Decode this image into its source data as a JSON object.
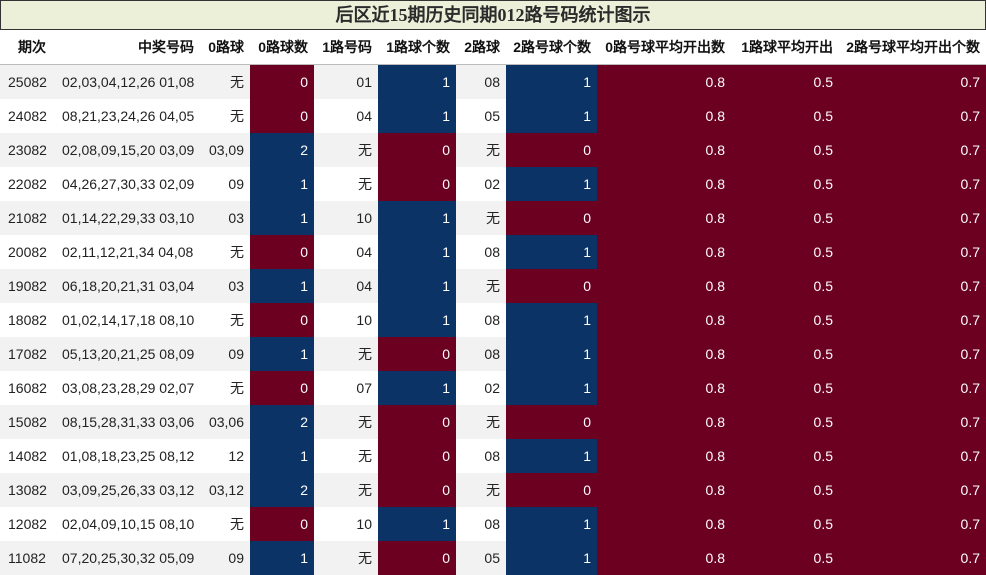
{
  "title": "后区近15期历史同期012路号码统计图示",
  "headers": [
    "期次",
    "中奖号码",
    "0路球",
    "0路球数",
    "1路号码",
    "1路球个数",
    "2路球",
    "2路号球个数",
    "0路号球平均开出数",
    "1路球平均开出",
    "2路号球平均开出个数"
  ],
  "colors": {
    "maroon": "#6b0021",
    "navy": "#0c3365",
    "title_bg": "#ecf0d9",
    "stripe": "#f2f2f2"
  },
  "rows": [
    [
      "25082",
      "02,03,04,12,26 01,08",
      "无",
      "0",
      "01",
      "1",
      "08",
      "1",
      "0.8",
      "0.5",
      "0.7"
    ],
    [
      "24082",
      "08,21,23,24,26 04,05",
      "无",
      "0",
      "04",
      "1",
      "05",
      "1",
      "0.8",
      "0.5",
      "0.7"
    ],
    [
      "23082",
      "02,08,09,15,20 03,09",
      "03,09",
      "2",
      "无",
      "0",
      "无",
      "0",
      "0.8",
      "0.5",
      "0.7"
    ],
    [
      "22082",
      "04,26,27,30,33 02,09",
      "09",
      "1",
      "无",
      "0",
      "02",
      "1",
      "0.8",
      "0.5",
      "0.7"
    ],
    [
      "21082",
      "01,14,22,29,33 03,10",
      "03",
      "1",
      "10",
      "1",
      "无",
      "0",
      "0.8",
      "0.5",
      "0.7"
    ],
    [
      "20082",
      "02,11,12,21,34 04,08",
      "无",
      "0",
      "04",
      "1",
      "08",
      "1",
      "0.8",
      "0.5",
      "0.7"
    ],
    [
      "19082",
      "06,18,20,21,31 03,04",
      "03",
      "1",
      "04",
      "1",
      "无",
      "0",
      "0.8",
      "0.5",
      "0.7"
    ],
    [
      "18082",
      "01,02,14,17,18 08,10",
      "无",
      "0",
      "10",
      "1",
      "08",
      "1",
      "0.8",
      "0.5",
      "0.7"
    ],
    [
      "17082",
      "05,13,20,21,25 08,09",
      "09",
      "1",
      "无",
      "0",
      "08",
      "1",
      "0.8",
      "0.5",
      "0.7"
    ],
    [
      "16082",
      "03,08,23,28,29 02,07",
      "无",
      "0",
      "07",
      "1",
      "02",
      "1",
      "0.8",
      "0.5",
      "0.7"
    ],
    [
      "15082",
      "08,15,28,31,33 03,06",
      "03,06",
      "2",
      "无",
      "0",
      "无",
      "0",
      "0.8",
      "0.5",
      "0.7"
    ],
    [
      "14082",
      "01,08,18,23,25 08,12",
      "12",
      "1",
      "无",
      "0",
      "08",
      "1",
      "0.8",
      "0.5",
      "0.7"
    ],
    [
      "13082",
      "03,09,25,26,33 03,12",
      "03,12",
      "2",
      "无",
      "0",
      "无",
      "0",
      "0.8",
      "0.5",
      "0.7"
    ],
    [
      "12082",
      "02,04,09,10,15 08,10",
      "无",
      "0",
      "10",
      "1",
      "08",
      "1",
      "0.8",
      "0.5",
      "0.7"
    ],
    [
      "11082",
      "07,20,25,30,32 05,09",
      "09",
      "1",
      "无",
      "0",
      "05",
      "1",
      "0.8",
      "0.5",
      "0.7"
    ]
  ]
}
